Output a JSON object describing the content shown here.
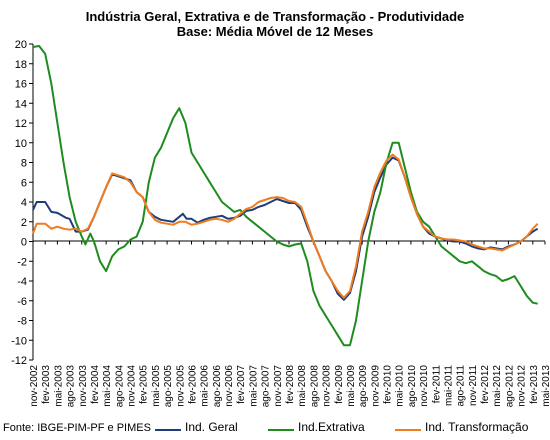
{
  "chart_data": {
    "type": "line",
    "title": "Indústria Geral, Extrativa e de Transformação - Produtividade",
    "subtitle": "Base: Média Móvel de 12 Meses",
    "source": "Fonte: IBGE-PIM-PF e PIMES",
    "xlabel": "",
    "ylabel": "",
    "ylim": [
      -12,
      20
    ],
    "yticks": [
      20,
      18,
      16,
      14,
      12,
      10,
      8,
      6,
      4,
      2,
      0,
      -2,
      -4,
      -6,
      -8,
      -10,
      -12
    ],
    "grid": false,
    "legend_position": "bottom",
    "x_tick_labels": [
      "nov-2002",
      "fev-2003",
      "mai-2003",
      "ago-2003",
      "nov-2003",
      "fev-2004",
      "mai-2004",
      "ago-2004",
      "nov-2004",
      "fev-2005",
      "mai-2005",
      "ago-2005",
      "nov-2005",
      "fev-2006",
      "mai-2006",
      "ago-2006",
      "nov-2006",
      "fev-2007",
      "mai-2007",
      "ago-2007",
      "nov-2007",
      "fev-2008",
      "mai-2008",
      "ago-2008",
      "nov-2008",
      "fev-2009",
      "mai-2009",
      "ago-2009",
      "nov-2009",
      "fev-2010",
      "mai-2010",
      "ago-2010",
      "nov-2010",
      "fev-2011",
      "mai-2011",
      "ago-2011",
      "nov-2011",
      "fev-2012",
      "mai-2012",
      "ago-2012",
      "nov-2012",
      "fev-2013",
      "mai-2013"
    ],
    "series": [
      {
        "name": "Ind. Geral",
        "color": "#1f3d7a",
        "points": [
          [
            0,
            3.2
          ],
          [
            0.3,
            4.0
          ],
          [
            1,
            4.0
          ],
          [
            1.5,
            3.0
          ],
          [
            2,
            2.9
          ],
          [
            2.7,
            2.4
          ],
          [
            3,
            2.3
          ],
          [
            3.5,
            1.0
          ],
          [
            4,
            1.0
          ],
          [
            4.5,
            1.2
          ],
          [
            5,
            2.5
          ],
          [
            5.5,
            4.0
          ],
          [
            6,
            5.5
          ],
          [
            6.5,
            6.8
          ],
          [
            7,
            6.6
          ],
          [
            7.5,
            6.4
          ],
          [
            8,
            6.2
          ],
          [
            8.5,
            5.0
          ],
          [
            9,
            4.5
          ],
          [
            9.5,
            3.0
          ],
          [
            10,
            2.5
          ],
          [
            10.5,
            2.2
          ],
          [
            11,
            2.1
          ],
          [
            11.5,
            2.0
          ],
          [
            12,
            2.5
          ],
          [
            12.3,
            2.8
          ],
          [
            12.6,
            2.3
          ],
          [
            13,
            2.3
          ],
          [
            13.5,
            1.9
          ],
          [
            14,
            2.2
          ],
          [
            14.5,
            2.4
          ],
          [
            15,
            2.5
          ],
          [
            15.5,
            2.6
          ],
          [
            16,
            2.3
          ],
          [
            16.5,
            2.4
          ],
          [
            17,
            2.6
          ],
          [
            17.5,
            3.1
          ],
          [
            18,
            3.2
          ],
          [
            18.5,
            3.5
          ],
          [
            19,
            3.7
          ],
          [
            19.5,
            4.0
          ],
          [
            20,
            4.3
          ],
          [
            20.5,
            4.1
          ],
          [
            21,
            3.9
          ],
          [
            21.5,
            3.9
          ],
          [
            22,
            3.2
          ],
          [
            22.5,
            1.5
          ],
          [
            23,
            0.0
          ],
          [
            23.5,
            -1.5
          ],
          [
            24,
            -3.0
          ],
          [
            24.5,
            -4.0
          ],
          [
            25,
            -5.3
          ],
          [
            25.5,
            -5.9
          ],
          [
            26,
            -5.2
          ],
          [
            26.5,
            -3.0
          ],
          [
            27,
            0.5
          ],
          [
            27.5,
            2.5
          ],
          [
            28,
            5.0
          ],
          [
            28.5,
            6.5
          ],
          [
            29,
            7.8
          ],
          [
            29.5,
            8.5
          ],
          [
            30,
            8.2
          ],
          [
            30.5,
            6.5
          ],
          [
            31,
            4.5
          ],
          [
            31.5,
            2.8
          ],
          [
            32,
            1.5
          ],
          [
            32.5,
            0.8
          ],
          [
            33,
            0.5
          ],
          [
            33.5,
            0.3
          ],
          [
            34,
            0.1
          ],
          [
            34.5,
            0.0
          ],
          [
            35,
            0.0
          ],
          [
            35.5,
            -0.2
          ],
          [
            36,
            -0.5
          ],
          [
            36.5,
            -0.7
          ],
          [
            37,
            -0.8
          ],
          [
            37.5,
            -0.6
          ],
          [
            38,
            -0.7
          ],
          [
            38.5,
            -0.8
          ],
          [
            39,
            -0.5
          ],
          [
            39.5,
            -0.3
          ],
          [
            40,
            0.0
          ],
          [
            40.5,
            0.5
          ],
          [
            41,
            1.0
          ],
          [
            41.4,
            1.3
          ]
        ]
      },
      {
        "name": "Ind.Extrativa",
        "color": "#1e8c1e",
        "points": [
          [
            0,
            19.7
          ],
          [
            0.5,
            19.8
          ],
          [
            1,
            19.0
          ],
          [
            1.5,
            16.0
          ],
          [
            2,
            12.0
          ],
          [
            2.5,
            8.0
          ],
          [
            3,
            4.5
          ],
          [
            3.5,
            2.0
          ],
          [
            4,
            0.5
          ],
          [
            4.3,
            -0.3
          ],
          [
            4.7,
            0.8
          ],
          [
            5,
            0.0
          ],
          [
            5.5,
            -2.0
          ],
          [
            6,
            -3.0
          ],
          [
            6.5,
            -1.5
          ],
          [
            7,
            -0.8
          ],
          [
            7.5,
            -0.5
          ],
          [
            8,
            0.2
          ],
          [
            8.5,
            0.5
          ],
          [
            9,
            2.0
          ],
          [
            9.5,
            6.0
          ],
          [
            10,
            8.5
          ],
          [
            10.5,
            9.5
          ],
          [
            11,
            11.0
          ],
          [
            11.5,
            12.5
          ],
          [
            12,
            13.5
          ],
          [
            12.5,
            12.0
          ],
          [
            13,
            9.0
          ],
          [
            13.5,
            8.0
          ],
          [
            14,
            7.0
          ],
          [
            14.5,
            6.0
          ],
          [
            15,
            5.0
          ],
          [
            15.5,
            4.0
          ],
          [
            16,
            3.5
          ],
          [
            16.5,
            3.0
          ],
          [
            17,
            3.2
          ],
          [
            17.5,
            2.5
          ],
          [
            18,
            2.0
          ],
          [
            18.5,
            1.5
          ],
          [
            19,
            1.0
          ],
          [
            19.5,
            0.5
          ],
          [
            20,
            0.0
          ],
          [
            20.5,
            -0.3
          ],
          [
            21,
            -0.5
          ],
          [
            21.5,
            -0.3
          ],
          [
            22,
            -0.2
          ],
          [
            22.5,
            -2.0
          ],
          [
            23,
            -5.0
          ],
          [
            23.5,
            -6.5
          ],
          [
            24,
            -7.5
          ],
          [
            24.5,
            -8.5
          ],
          [
            25,
            -9.5
          ],
          [
            25.5,
            -10.5
          ],
          [
            26,
            -10.5
          ],
          [
            26.5,
            -8.0
          ],
          [
            27,
            -4.0
          ],
          [
            27.5,
            0.0
          ],
          [
            28,
            3.0
          ],
          [
            28.5,
            5.0
          ],
          [
            29,
            8.0
          ],
          [
            29.5,
            10.0
          ],
          [
            30,
            10.0
          ],
          [
            30.5,
            7.5
          ],
          [
            31,
            5.0
          ],
          [
            31.5,
            3.0
          ],
          [
            32,
            2.0
          ],
          [
            32.5,
            1.5
          ],
          [
            33,
            0.5
          ],
          [
            33.5,
            -0.5
          ],
          [
            34,
            -1.0
          ],
          [
            34.5,
            -1.5
          ],
          [
            35,
            -2.0
          ],
          [
            35.5,
            -2.2
          ],
          [
            36,
            -2.0
          ],
          [
            36.5,
            -2.5
          ],
          [
            37,
            -3.0
          ],
          [
            37.5,
            -3.3
          ],
          [
            38,
            -3.5
          ],
          [
            38.5,
            -4.0
          ],
          [
            39,
            -3.8
          ],
          [
            39.5,
            -3.5
          ],
          [
            40,
            -4.5
          ],
          [
            40.5,
            -5.5
          ],
          [
            41,
            -6.2
          ],
          [
            41.4,
            -6.3
          ]
        ]
      },
      {
        "name": "Ind. Transformação",
        "color": "#f07c1e",
        "points": [
          [
            0,
            0.8
          ],
          [
            0.3,
            1.8
          ],
          [
            1,
            1.8
          ],
          [
            1.5,
            1.3
          ],
          [
            2,
            1.5
          ],
          [
            2.5,
            1.3
          ],
          [
            3,
            1.2
          ],
          [
            3.5,
            1.3
          ],
          [
            4,
            1.0
          ],
          [
            4.5,
            1.3
          ],
          [
            5,
            2.5
          ],
          [
            5.5,
            4.0
          ],
          [
            6,
            5.5
          ],
          [
            6.5,
            6.9
          ],
          [
            7,
            6.7
          ],
          [
            7.5,
            6.5
          ],
          [
            8,
            6.0
          ],
          [
            8.5,
            5.0
          ],
          [
            9,
            4.5
          ],
          [
            9.5,
            3.0
          ],
          [
            10,
            2.2
          ],
          [
            10.5,
            1.9
          ],
          [
            11,
            1.8
          ],
          [
            11.5,
            1.7
          ],
          [
            12,
            2.0
          ],
          [
            12.5,
            2.0
          ],
          [
            13,
            1.7
          ],
          [
            13.5,
            1.8
          ],
          [
            14,
            2.0
          ],
          [
            14.5,
            2.2
          ],
          [
            15,
            2.3
          ],
          [
            15.5,
            2.2
          ],
          [
            16,
            2.0
          ],
          [
            16.5,
            2.3
          ],
          [
            17,
            2.8
          ],
          [
            17.5,
            3.3
          ],
          [
            18,
            3.5
          ],
          [
            18.5,
            4.0
          ],
          [
            19,
            4.2
          ],
          [
            19.5,
            4.4
          ],
          [
            20,
            4.5
          ],
          [
            20.5,
            4.4
          ],
          [
            21,
            4.1
          ],
          [
            21.5,
            4.0
          ],
          [
            22,
            3.5
          ],
          [
            22.5,
            1.8
          ],
          [
            23,
            0.0
          ],
          [
            23.5,
            -1.5
          ],
          [
            24,
            -3.0
          ],
          [
            24.5,
            -4.0
          ],
          [
            25,
            -5.0
          ],
          [
            25.5,
            -5.7
          ],
          [
            26,
            -5.0
          ],
          [
            26.5,
            -2.5
          ],
          [
            27,
            1.0
          ],
          [
            27.5,
            3.0
          ],
          [
            28,
            5.5
          ],
          [
            28.5,
            7.0
          ],
          [
            29,
            8.2
          ],
          [
            29.5,
            8.8
          ],
          [
            30,
            8.3
          ],
          [
            30.5,
            6.5
          ],
          [
            31,
            4.5
          ],
          [
            31.5,
            2.8
          ],
          [
            32,
            1.5
          ],
          [
            32.5,
            1.0
          ],
          [
            33,
            0.5
          ],
          [
            33.5,
            0.3
          ],
          [
            34,
            0.2
          ],
          [
            34.5,
            0.2
          ],
          [
            35,
            0.1
          ],
          [
            35.5,
            0.0
          ],
          [
            36,
            -0.3
          ],
          [
            36.5,
            -0.5
          ],
          [
            37,
            -0.7
          ],
          [
            37.5,
            -0.7
          ],
          [
            38,
            -0.8
          ],
          [
            38.5,
            -0.9
          ],
          [
            39,
            -0.6
          ],
          [
            39.5,
            -0.3
          ],
          [
            40,
            0.0
          ],
          [
            40.5,
            0.5
          ],
          [
            41,
            1.3
          ],
          [
            41.4,
            1.8
          ]
        ]
      }
    ]
  }
}
